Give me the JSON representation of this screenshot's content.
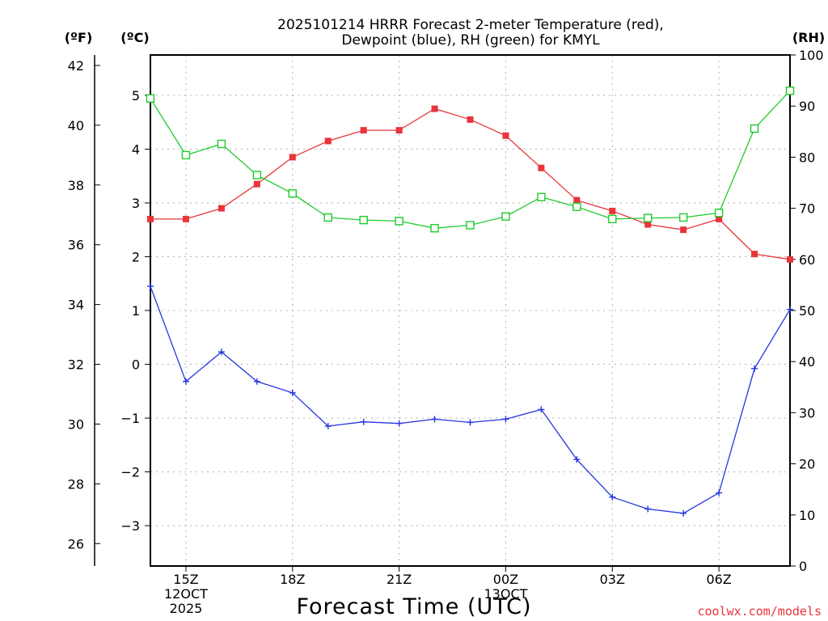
{
  "chart_data": {
    "type": "line",
    "title_line1": "2025101214 HRRR Forecast 2-meter Temperature (red),",
    "title_line2": "Dewpoint (blue), RH (green) for KMYL",
    "xlabel": "Forecast Time (UTC)",
    "credit": "coolwx.com/models",
    "units": {
      "left_f": "(ºF)",
      "left_c": "(ºC)",
      "right_rh": "(RH)"
    },
    "x_hours": [
      14,
      15,
      16,
      17,
      18,
      19,
      20,
      21,
      22,
      23,
      24,
      25,
      26,
      27,
      28,
      29,
      30,
      31,
      32
    ],
    "x_ticks": [
      {
        "hour": 15,
        "line1": "15Z",
        "line2": "12OCT",
        "line3": "2025"
      },
      {
        "hour": 18,
        "line1": "18Z",
        "line2": "",
        "line3": ""
      },
      {
        "hour": 21,
        "line1": "21Z",
        "line2": "",
        "line3": ""
      },
      {
        "hour": 24,
        "line1": "00Z",
        "line2": "13OCT",
        "line3": ""
      },
      {
        "hour": 27,
        "line1": "03Z",
        "line2": "",
        "line3": ""
      },
      {
        "hour": 30,
        "line1": "06Z",
        "line2": "",
        "line3": ""
      }
    ],
    "c_range": [
      -3.75,
      5.75
    ],
    "c_ticks": [
      "-3",
      "-2",
      "-1",
      "0",
      "1",
      "2",
      "3",
      "4",
      "5"
    ],
    "f_ticks": [
      "26",
      "28",
      "30",
      "32",
      "34",
      "36",
      "38",
      "40",
      "42"
    ],
    "rh_range": [
      0,
      100
    ],
    "rh_ticks": [
      "0",
      "10",
      "20",
      "30",
      "40",
      "50",
      "60",
      "70",
      "80",
      "90",
      "100"
    ],
    "series": [
      {
        "name": "Temperature",
        "units": "C",
        "color": "#e8343a",
        "marker": "filled-square",
        "values": [
          2.7,
          2.7,
          2.9,
          3.35,
          3.85,
          4.15,
          4.35,
          4.35,
          4.75,
          4.55,
          4.25,
          3.65,
          3.05,
          2.85,
          2.6,
          2.5,
          2.7,
          2.05,
          1.95
        ]
      },
      {
        "name": "Dewpoint",
        "units": "C",
        "color": "#2535e0",
        "marker": "plus",
        "values": [
          1.45,
          -0.32,
          0.23,
          -0.32,
          -0.53,
          -1.15,
          -1.07,
          -1.1,
          -1.02,
          -1.08,
          -1.02,
          -0.84,
          -1.77,
          -2.47,
          -2.69,
          -2.77,
          -2.39,
          -0.08,
          1.02
        ]
      },
      {
        "name": "RH",
        "units": "%",
        "color": "#1fcc2a",
        "marker": "open-square",
        "values": [
          91.5,
          80.4,
          82.6,
          76.5,
          72.9,
          68.2,
          67.7,
          67.5,
          66.1,
          66.7,
          68.4,
          72.2,
          70.3,
          67.9,
          68.1,
          68.2,
          69.1,
          85.6,
          93.0
        ]
      }
    ]
  }
}
